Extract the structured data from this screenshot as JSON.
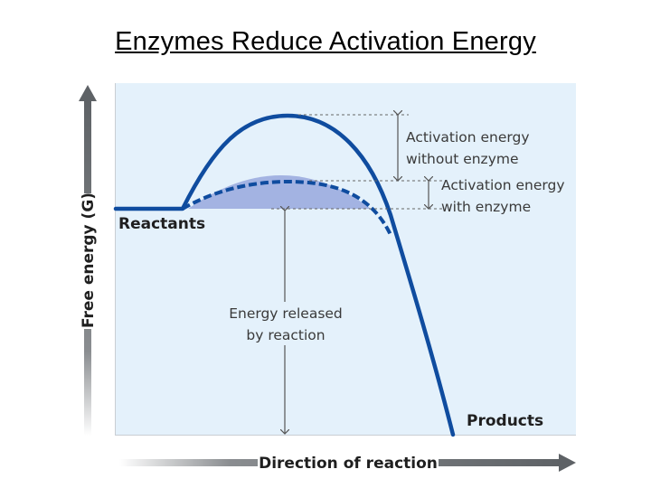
{
  "title": "Enzymes Reduce Activation Energy",
  "y_axis_label": "Free energy (G)",
  "x_axis_label": "Direction of reaction",
  "labels": {
    "reactants": "Reactants",
    "products": "Products",
    "activation_without_line1": "Activation energy",
    "activation_without_line2": "without enzyme",
    "activation_with_line1": "Activation energy",
    "activation_with_line2": "with enzyme",
    "released_line1": "Energy released",
    "released_line2": "by reaction"
  },
  "colors": {
    "plot_background": "#e4f1fb",
    "curve": "#0f4c9f",
    "enzyme_fill": "#a3b3e2",
    "axis_gray": "#6b6f73"
  }
}
